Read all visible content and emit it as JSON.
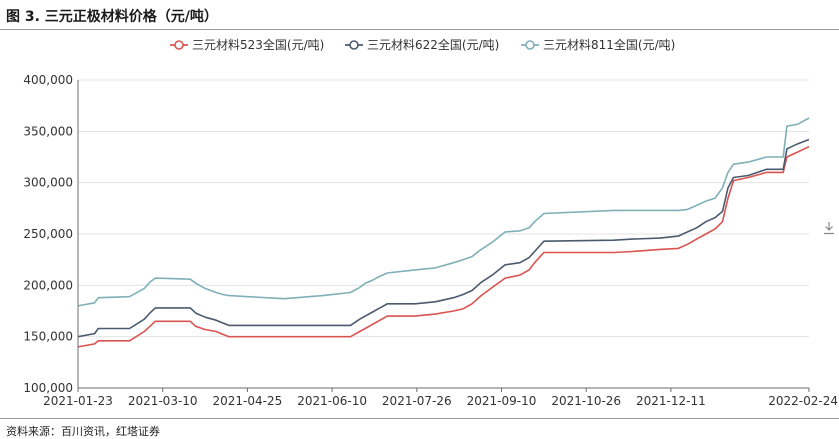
{
  "figure": {
    "title": "图 3. 三元正极材料价格（元/吨）",
    "source": "资料来源：百川资讯，红塔证券"
  },
  "chart_data": {
    "type": "line",
    "title": "",
    "xlabel": "",
    "ylabel": "",
    "ylim": [
      100000,
      400000
    ],
    "y_ticks": [
      100000,
      150000,
      200000,
      250000,
      300000,
      350000,
      400000
    ],
    "y_tick_labels": [
      "100,000",
      "150,000",
      "200,000",
      "250,000",
      "300,000",
      "350,000",
      "400,000"
    ],
    "x_range": [
      "2021-01-23",
      "2022-02-24"
    ],
    "x_tick_labels": [
      "2021-01-23",
      "2021-03-10",
      "2021-04-25",
      "2021-06-10",
      "2021-07-26",
      "2021-09-10",
      "2021-10-26",
      "2021-12-11",
      "2022-02-24"
    ],
    "grid": "horizontal",
    "legend": "top-center",
    "series": [
      {
        "name": "三元材料523全国(元/吨)",
        "color": "#d9534f",
        "points": [
          [
            "2021-01-23",
            140000
          ],
          [
            "2021-02-01",
            143000
          ],
          [
            "2021-02-03",
            146000
          ],
          [
            "2021-02-20",
            146000
          ],
          [
            "2021-02-28",
            155000
          ],
          [
            "2021-03-03",
            160000
          ],
          [
            "2021-03-06",
            165000
          ],
          [
            "2021-03-25",
            165000
          ],
          [
            "2021-03-28",
            160000
          ],
          [
            "2021-04-02",
            157000
          ],
          [
            "2021-04-08",
            155000
          ],
          [
            "2021-04-12",
            152000
          ],
          [
            "2021-04-15",
            150000
          ],
          [
            "2021-05-15",
            150000
          ],
          [
            "2021-06-05",
            150000
          ],
          [
            "2021-06-20",
            150000
          ],
          [
            "2021-06-25",
            155000
          ],
          [
            "2021-06-28",
            158000
          ],
          [
            "2021-07-02",
            162000
          ],
          [
            "2021-07-05",
            165000
          ],
          [
            "2021-07-10",
            170000
          ],
          [
            "2021-07-25",
            170000
          ],
          [
            "2021-08-05",
            172000
          ],
          [
            "2021-08-15",
            175000
          ],
          [
            "2021-08-20",
            177000
          ],
          [
            "2021-08-25",
            182000
          ],
          [
            "2021-08-30",
            190000
          ],
          [
            "2021-09-05",
            198000
          ],
          [
            "2021-09-12",
            207000
          ],
          [
            "2021-09-20",
            210000
          ],
          [
            "2021-09-25",
            215000
          ],
          [
            "2021-09-28",
            222000
          ],
          [
            "2021-10-03",
            232000
          ],
          [
            "2021-11-10",
            232000
          ],
          [
            "2021-11-20",
            233000
          ],
          [
            "2021-12-05",
            235000
          ],
          [
            "2021-12-15",
            236000
          ],
          [
            "2021-12-20",
            240000
          ],
          [
            "2021-12-25",
            245000
          ],
          [
            "2021-12-30",
            250000
          ],
          [
            "2022-01-04",
            255000
          ],
          [
            "2022-01-08",
            262000
          ],
          [
            "2022-01-11",
            285000
          ],
          [
            "2022-01-14",
            302000
          ],
          [
            "2022-01-22",
            305000
          ],
          [
            "2022-02-01",
            310000
          ],
          [
            "2022-02-10",
            310000
          ],
          [
            "2022-02-12",
            325000
          ],
          [
            "2022-02-18",
            330000
          ],
          [
            "2022-02-24",
            335000
          ]
        ]
      },
      {
        "name": "三元材料622全国(元/吨)",
        "color": "#4b5a6e",
        "points": [
          [
            "2021-01-23",
            150000
          ],
          [
            "2021-02-01",
            153000
          ],
          [
            "2021-02-03",
            158000
          ],
          [
            "2021-02-20",
            158000
          ],
          [
            "2021-02-28",
            167000
          ],
          [
            "2021-03-03",
            173000
          ],
          [
            "2021-03-06",
            178000
          ],
          [
            "2021-03-25",
            178000
          ],
          [
            "2021-03-28",
            173000
          ],
          [
            "2021-04-02",
            169000
          ],
          [
            "2021-04-08",
            166000
          ],
          [
            "2021-04-12",
            163000
          ],
          [
            "2021-04-15",
            161000
          ],
          [
            "2021-05-15",
            161000
          ],
          [
            "2021-06-05",
            161000
          ],
          [
            "2021-06-20",
            161000
          ],
          [
            "2021-06-25",
            167000
          ],
          [
            "2021-06-28",
            170000
          ],
          [
            "2021-07-02",
            174000
          ],
          [
            "2021-07-05",
            177000
          ],
          [
            "2021-07-10",
            182000
          ],
          [
            "2021-07-25",
            182000
          ],
          [
            "2021-08-05",
            184000
          ],
          [
            "2021-08-15",
            188000
          ],
          [
            "2021-08-20",
            191000
          ],
          [
            "2021-08-25",
            195000
          ],
          [
            "2021-08-30",
            203000
          ],
          [
            "2021-09-05",
            210000
          ],
          [
            "2021-09-12",
            220000
          ],
          [
            "2021-09-20",
            222000
          ],
          [
            "2021-09-25",
            227000
          ],
          [
            "2021-09-28",
            233000
          ],
          [
            "2021-10-03",
            243000
          ],
          [
            "2021-11-10",
            244000
          ],
          [
            "2021-11-20",
            245000
          ],
          [
            "2021-12-05",
            246000
          ],
          [
            "2021-12-15",
            248000
          ],
          [
            "2021-12-20",
            252000
          ],
          [
            "2021-12-25",
            256000
          ],
          [
            "2021-12-30",
            262000
          ],
          [
            "2022-01-04",
            266000
          ],
          [
            "2022-01-08",
            272000
          ],
          [
            "2022-01-11",
            295000
          ],
          [
            "2022-01-14",
            305000
          ],
          [
            "2022-01-22",
            307000
          ],
          [
            "2022-02-01",
            313000
          ],
          [
            "2022-02-10",
            313000
          ],
          [
            "2022-02-12",
            333000
          ],
          [
            "2022-02-18",
            338000
          ],
          [
            "2022-02-24",
            342000
          ]
        ]
      },
      {
        "name": "三元材料811全国(元/吨)",
        "color": "#7fb0b8",
        "points": [
          [
            "2021-01-23",
            180000
          ],
          [
            "2021-02-01",
            183000
          ],
          [
            "2021-02-03",
            188000
          ],
          [
            "2021-02-20",
            189000
          ],
          [
            "2021-02-28",
            197000
          ],
          [
            "2021-03-03",
            203000
          ],
          [
            "2021-03-06",
            207000
          ],
          [
            "2021-03-25",
            206000
          ],
          [
            "2021-03-28",
            202000
          ],
          [
            "2021-04-02",
            197000
          ],
          [
            "2021-04-08",
            193000
          ],
          [
            "2021-04-12",
            191000
          ],
          [
            "2021-04-15",
            190000
          ],
          [
            "2021-05-15",
            187000
          ],
          [
            "2021-06-05",
            190000
          ],
          [
            "2021-06-20",
            193000
          ],
          [
            "2021-06-25",
            198000
          ],
          [
            "2021-06-28",
            202000
          ],
          [
            "2021-07-02",
            205000
          ],
          [
            "2021-07-05",
            208000
          ],
          [
            "2021-07-10",
            212000
          ],
          [
            "2021-07-25",
            215000
          ],
          [
            "2021-08-05",
            217000
          ],
          [
            "2021-08-15",
            222000
          ],
          [
            "2021-08-20",
            225000
          ],
          [
            "2021-08-25",
            228000
          ],
          [
            "2021-08-30",
            235000
          ],
          [
            "2021-09-05",
            242000
          ],
          [
            "2021-09-12",
            252000
          ],
          [
            "2021-09-20",
            253000
          ],
          [
            "2021-09-25",
            256000
          ],
          [
            "2021-09-28",
            262000
          ],
          [
            "2021-10-03",
            270000
          ],
          [
            "2021-11-10",
            273000
          ],
          [
            "2021-11-20",
            273000
          ],
          [
            "2021-12-05",
            273000
          ],
          [
            "2021-12-15",
            273000
          ],
          [
            "2021-12-20",
            274000
          ],
          [
            "2021-12-25",
            278000
          ],
          [
            "2021-12-30",
            282000
          ],
          [
            "2022-01-04",
            285000
          ],
          [
            "2022-01-08",
            295000
          ],
          [
            "2022-01-11",
            310000
          ],
          [
            "2022-01-14",
            318000
          ],
          [
            "2022-01-22",
            320000
          ],
          [
            "2022-02-01",
            325000
          ],
          [
            "2022-02-10",
            325000
          ],
          [
            "2022-02-12",
            355000
          ],
          [
            "2022-02-18",
            357000
          ],
          [
            "2022-02-24",
            363000
          ]
        ]
      }
    ]
  },
  "icons": {
    "download": "download-icon"
  }
}
